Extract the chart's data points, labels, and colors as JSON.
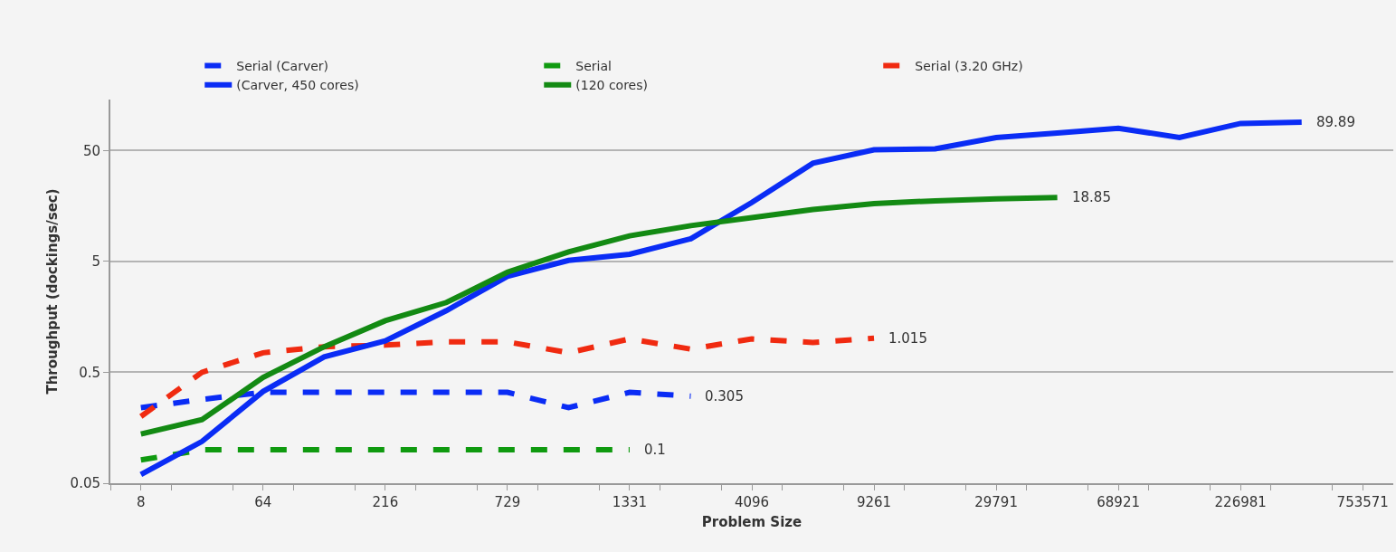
{
  "chart_data": {
    "type": "line",
    "xlabel": "Problem Size",
    "ylabel": "Throughput (dockings/sec)",
    "categories": [
      "8",
      null,
      "64",
      null,
      "216",
      null,
      "729",
      null,
      "1331",
      null,
      "4096",
      null,
      "9261",
      null,
      "29791",
      null,
      "68921",
      null,
      "226981",
      null,
      "753571"
    ],
    "log": "y",
    "ylim": [
      0.05,
      144
    ],
    "yticks": [
      0.05,
      0.5,
      5,
      50
    ],
    "grid": "y",
    "legend": "top",
    "marker": "none",
    "series": [
      {
        "name": "Serial (Carver)",
        "color": "#0a2cf5",
        "line_style": "dashed",
        "values": [
          0.24,
          0.285,
          0.33,
          0.33,
          0.33,
          0.33,
          0.33,
          0.24,
          0.33,
          0.305,
          null,
          null,
          null,
          null,
          null,
          null,
          null,
          null,
          null,
          null,
          null
        ],
        "value_labels": [
          null,
          null,
          null,
          null,
          null,
          null,
          null,
          null,
          null,
          "0.305",
          null,
          null,
          null,
          null,
          null,
          null,
          null,
          null,
          null,
          null,
          null
        ]
      },
      {
        "name": "Serial",
        "color": "#0f9a0f",
        "line_style": "dashed",
        "values": [
          0.081,
          0.1,
          0.1,
          0.1,
          0.1,
          0.1,
          0.1,
          0.1,
          0.1,
          null,
          null,
          null,
          null,
          null,
          null,
          null,
          null,
          null,
          null,
          null,
          null
        ],
        "value_labels": [
          null,
          null,
          null,
          null,
          null,
          null,
          null,
          null,
          "0.1",
          null,
          null,
          null,
          null,
          null,
          null,
          null,
          null,
          null,
          null,
          null,
          null
        ]
      },
      {
        "name": "Serial (3.20 GHz)",
        "color": "#f02a10",
        "line_style": "dashed",
        "values": [
          0.2,
          0.5,
          0.75,
          0.85,
          0.88,
          0.94,
          0.94,
          0.75,
          1.0,
          0.81,
          1.0,
          0.93,
          1.015,
          null,
          null,
          null,
          null,
          null,
          null,
          null,
          null
        ],
        "value_labels": [
          null,
          null,
          null,
          null,
          null,
          null,
          null,
          null,
          null,
          null,
          null,
          null,
          "1.015",
          null,
          null,
          null,
          null,
          null,
          null,
          null,
          null
        ]
      },
      {
        "name": "(Carver, 450 cores)",
        "color": "#0a2cf5",
        "line_style": "solid",
        "values": [
          0.06,
          0.119,
          0.336,
          0.69,
          0.96,
          1.8,
          3.67,
          5.1,
          5.8,
          8.0,
          17.0,
          38.4,
          50.8,
          51.8,
          65.5,
          71.8,
          79.4,
          65.5,
          87.7,
          89.89,
          null
        ],
        "value_labels": [
          null,
          null,
          null,
          null,
          null,
          null,
          null,
          null,
          null,
          null,
          null,
          null,
          null,
          null,
          null,
          null,
          null,
          null,
          null,
          "89.89",
          null
        ]
      },
      {
        "name": "(120 cores)",
        "color": "#138a13",
        "line_style": "solid",
        "values": [
          0.139,
          0.187,
          0.45,
          0.85,
          1.46,
          2.13,
          4.0,
          6.1,
          8.5,
          10.5,
          12.4,
          14.7,
          16.6,
          17.6,
          18.3,
          18.85,
          null,
          null,
          null,
          null,
          null
        ],
        "value_labels": [
          null,
          null,
          null,
          null,
          null,
          null,
          null,
          null,
          null,
          null,
          null,
          null,
          null,
          null,
          null,
          "18.85",
          null,
          null,
          null,
          null,
          null
        ]
      }
    ]
  }
}
